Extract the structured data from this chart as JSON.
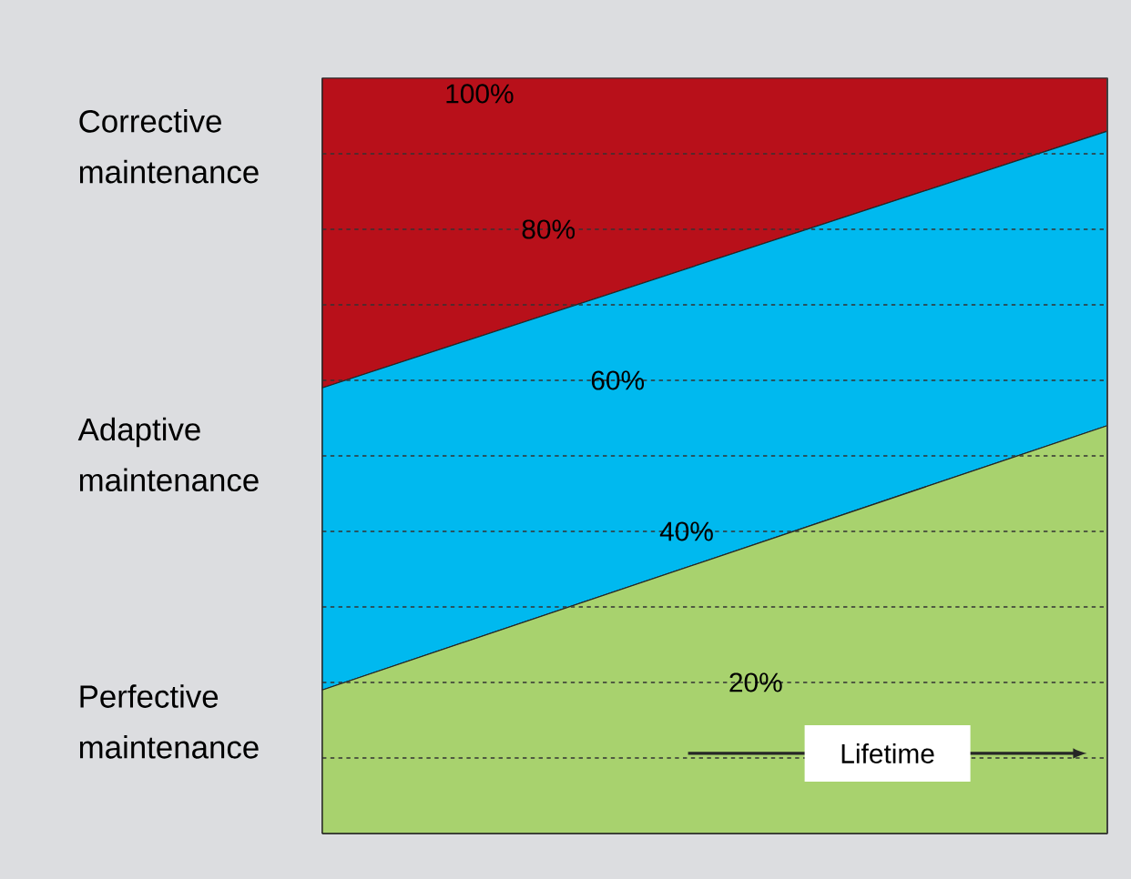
{
  "chart_data": {
    "type": "area",
    "stacked": true,
    "categories": [
      null,
      null
    ],
    "series": [
      {
        "name": "Perfective maintenance",
        "color": "#a8d26e",
        "values": [
          19,
          54
        ]
      },
      {
        "name": "Adaptive maintenance",
        "color": "#00b9ef",
        "values": [
          40,
          39
        ]
      },
      {
        "name": "Corrective maintenance",
        "color": "#b8101a",
        "values": [
          41,
          7
        ]
      }
    ],
    "ylim": [
      0,
      100
    ],
    "ref_lines": [
      {
        "axis": "y",
        "value": 10,
        "line_style": "dashed"
      },
      {
        "axis": "y",
        "value": 20,
        "label": "20%",
        "line_style": "dashed"
      },
      {
        "axis": "y",
        "value": 30,
        "line_style": "dashed"
      },
      {
        "axis": "y",
        "value": 40,
        "label": "40%",
        "line_style": "dashed"
      },
      {
        "axis": "y",
        "value": 50,
        "line_style": "dashed"
      },
      {
        "axis": "y",
        "value": 60,
        "label": "60%",
        "line_style": "dashed"
      },
      {
        "axis": "y",
        "value": 70,
        "line_style": "dashed"
      },
      {
        "axis": "y",
        "value": 80,
        "label": "80%",
        "line_style": "dashed"
      },
      {
        "axis": "y",
        "value": 90,
        "line_style": "dashed"
      }
    ],
    "annotations": [
      {
        "text": "100%",
        "y": 100
      },
      "Lifetime"
    ]
  }
}
